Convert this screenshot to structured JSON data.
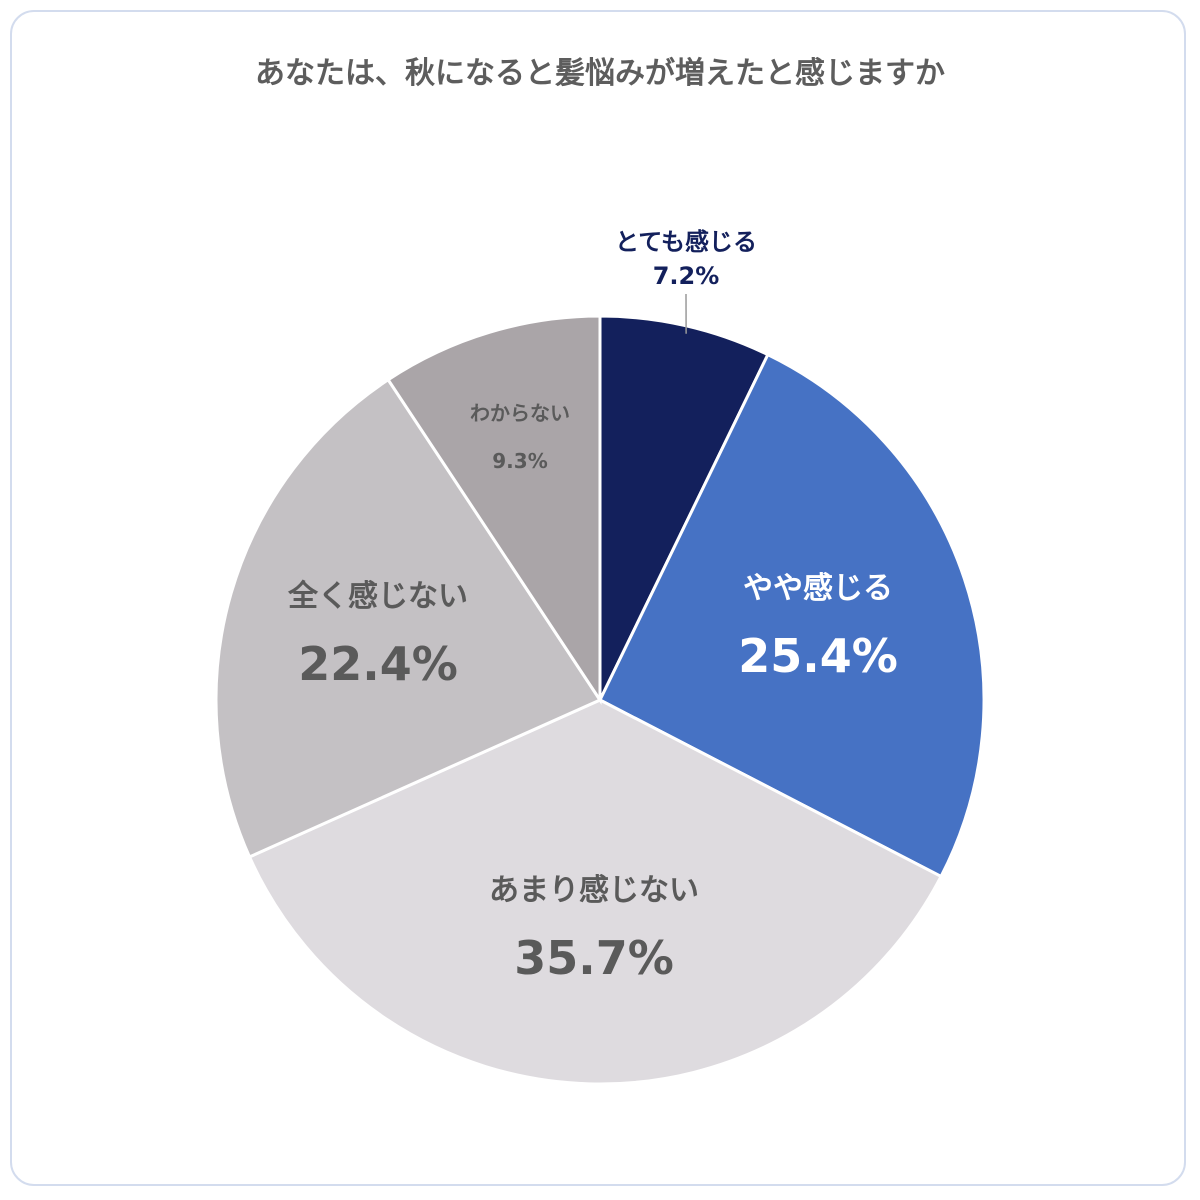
{
  "chart_data": {
    "type": "pie",
    "title": "あなたは、秋になると髪悩みが増えたと感じますか",
    "slices": [
      {
        "label": "とても感じる",
        "value": 7.2,
        "display": "7.2%",
        "color": "#13205c",
        "text_color": "#13205c",
        "label_position": "outside"
      },
      {
        "label": "やや感じる",
        "value": 25.4,
        "display": "25.4%",
        "color": "#4672c4",
        "text_color": "#ffffff",
        "label_position": "inside"
      },
      {
        "label": "あまり感じない",
        "value": 35.7,
        "display": "35.7%",
        "color": "#dedbdf",
        "text_color": "#5a5a5a",
        "label_position": "inside"
      },
      {
        "label": "全く感じない",
        "value": 22.4,
        "display": "22.4%",
        "color": "#c4c1c4",
        "text_color": "#5a5a5a",
        "label_position": "inside"
      },
      {
        "label": "わからない",
        "value": 9.3,
        "display": "9.3%",
        "color": "#aaa5a8",
        "text_color": "#5a5a5a",
        "label_position": "inside"
      }
    ]
  }
}
